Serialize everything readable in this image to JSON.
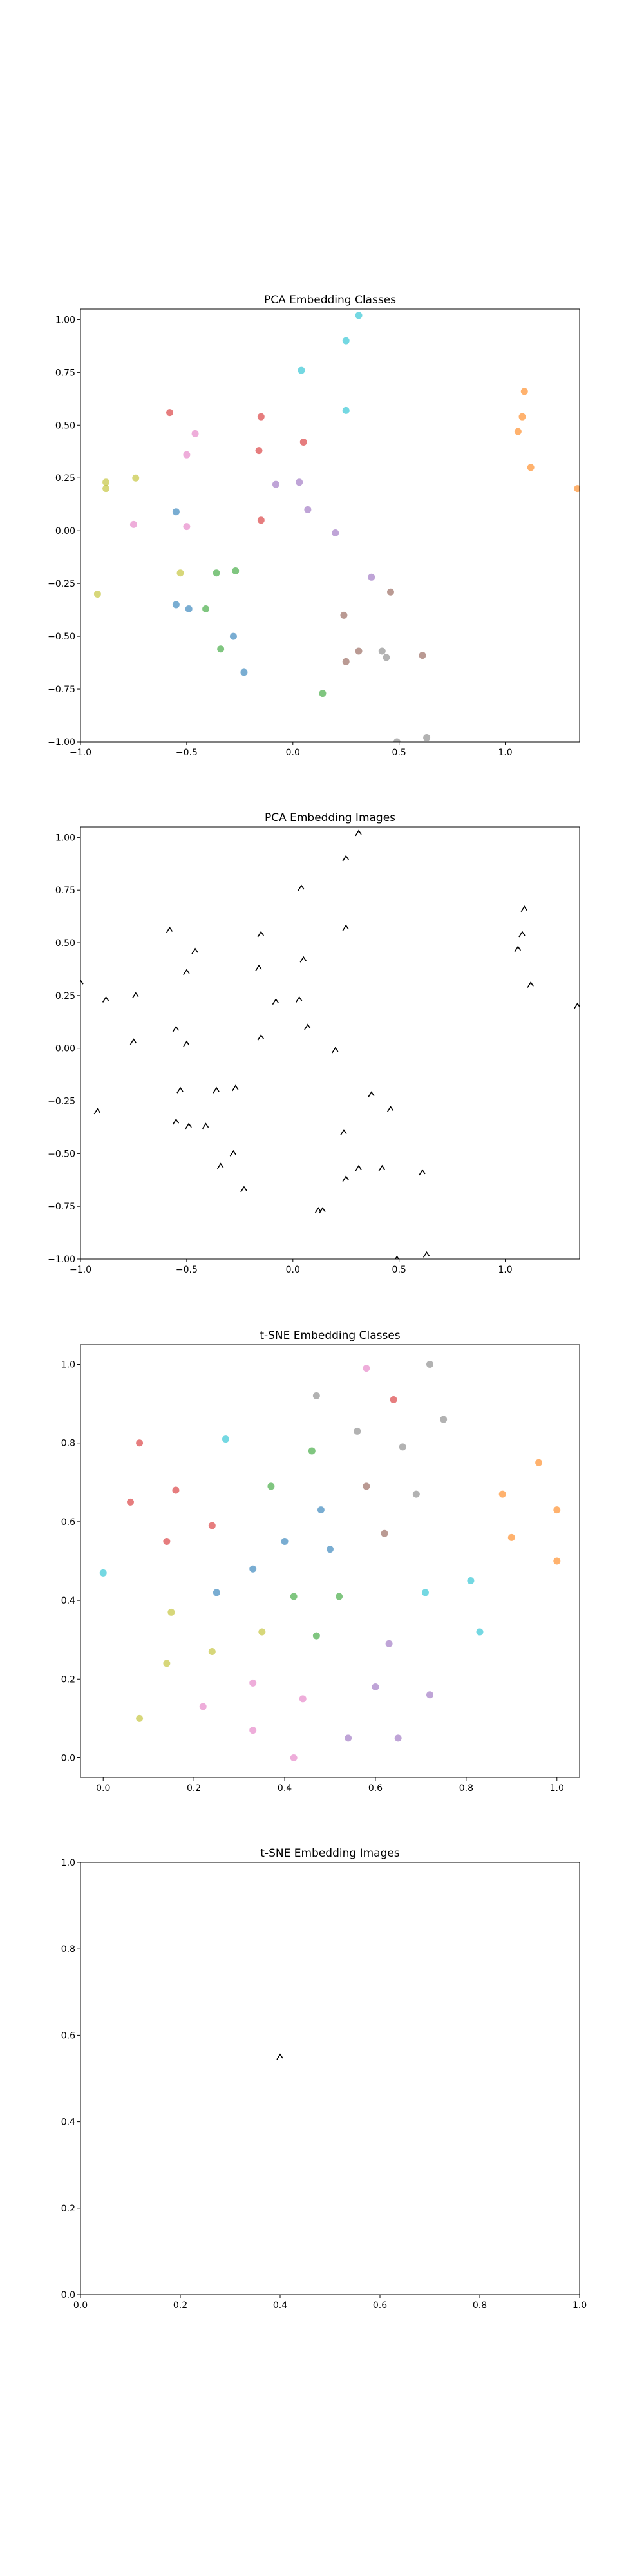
{
  "chart_data": [
    {
      "type": "scatter",
      "title": "PCA Embedding Classes",
      "xlim": [
        -1.0,
        1.35
      ],
      "ylim": [
        -1.0,
        1.05
      ],
      "xticks": [
        -1.0,
        -0.5,
        0.0,
        0.5,
        1.0
      ],
      "xtick_labels": [
        "−1.0",
        "−0.5",
        "0.0",
        "0.5",
        "1.0"
      ],
      "yticks": [
        -1.0,
        -0.75,
        -0.5,
        -0.25,
        0.0,
        0.25,
        0.5,
        0.75,
        1.0
      ],
      "ytick_labels": [
        "−1.00",
        "−0.75",
        "−0.50",
        "−0.25",
        "0.00",
        "0.25",
        "0.50",
        "0.75",
        "1.00"
      ],
      "marker": "dot",
      "points": [
        {
          "x": 0.31,
          "y": 1.02,
          "color": "#17becf"
        },
        {
          "x": 0.25,
          "y": 0.9,
          "color": "#17becf"
        },
        {
          "x": 0.04,
          "y": 0.76,
          "color": "#17becf"
        },
        {
          "x": 0.25,
          "y": 0.57,
          "color": "#17becf"
        },
        {
          "x": 1.09,
          "y": 0.66,
          "color": "#ff7f0e"
        },
        {
          "x": 1.08,
          "y": 0.54,
          "color": "#ff7f0e"
        },
        {
          "x": 1.06,
          "y": 0.47,
          "color": "#ff7f0e"
        },
        {
          "x": 1.12,
          "y": 0.3,
          "color": "#ff7f0e"
        },
        {
          "x": 1.34,
          "y": 0.2,
          "color": "#ff7f0e"
        },
        {
          "x": -0.58,
          "y": 0.56,
          "color": "#d62728"
        },
        {
          "x": -0.15,
          "y": 0.54,
          "color": "#d62728"
        },
        {
          "x": 0.05,
          "y": 0.42,
          "color": "#d62728"
        },
        {
          "x": -0.16,
          "y": 0.38,
          "color": "#d62728"
        },
        {
          "x": -0.15,
          "y": 0.05,
          "color": "#d62728"
        },
        {
          "x": -0.46,
          "y": 0.46,
          "color": "#e377c2"
        },
        {
          "x": -0.5,
          "y": 0.36,
          "color": "#e377c2"
        },
        {
          "x": -0.75,
          "y": 0.03,
          "color": "#e377c2"
        },
        {
          "x": -0.5,
          "y": 0.02,
          "color": "#e377c2"
        },
        {
          "x": -0.88,
          "y": 0.23,
          "color": "#bcbd22"
        },
        {
          "x": -0.88,
          "y": 0.2,
          "color": "#bcbd22"
        },
        {
          "x": -0.74,
          "y": 0.25,
          "color": "#bcbd22"
        },
        {
          "x": -0.53,
          "y": -0.2,
          "color": "#bcbd22"
        },
        {
          "x": -0.92,
          "y": -0.3,
          "color": "#bcbd22"
        },
        {
          "x": -0.08,
          "y": 0.22,
          "color": "#9467bd"
        },
        {
          "x": 0.03,
          "y": 0.23,
          "color": "#9467bd"
        },
        {
          "x": 0.07,
          "y": 0.1,
          "color": "#9467bd"
        },
        {
          "x": 0.2,
          "y": -0.01,
          "color": "#9467bd"
        },
        {
          "x": 0.37,
          "y": -0.22,
          "color": "#9467bd"
        },
        {
          "x": -0.55,
          "y": 0.09,
          "color": "#1f77b4"
        },
        {
          "x": -0.55,
          "y": -0.35,
          "color": "#1f77b4"
        },
        {
          "x": -0.49,
          "y": -0.37,
          "color": "#1f77b4"
        },
        {
          "x": -0.28,
          "y": -0.5,
          "color": "#1f77b4"
        },
        {
          "x": -0.23,
          "y": -0.67,
          "color": "#1f77b4"
        },
        {
          "x": -0.36,
          "y": -0.2,
          "color": "#2ca02c"
        },
        {
          "x": -0.27,
          "y": -0.19,
          "color": "#2ca02c"
        },
        {
          "x": -0.41,
          "y": -0.37,
          "color": "#2ca02c"
        },
        {
          "x": -0.34,
          "y": -0.56,
          "color": "#2ca02c"
        },
        {
          "x": 0.14,
          "y": -0.77,
          "color": "#2ca02c"
        },
        {
          "x": 0.46,
          "y": -0.29,
          "color": "#8c564b"
        },
        {
          "x": 0.24,
          "y": -0.4,
          "color": "#8c564b"
        },
        {
          "x": 0.31,
          "y": -0.57,
          "color": "#8c564b"
        },
        {
          "x": 0.25,
          "y": -0.62,
          "color": "#8c564b"
        },
        {
          "x": 0.61,
          "y": -0.59,
          "color": "#8c564b"
        },
        {
          "x": 0.42,
          "y": -0.57,
          "color": "#7f7f7f"
        },
        {
          "x": 0.44,
          "y": -0.6,
          "color": "#7f7f7f"
        },
        {
          "x": 0.49,
          "y": -1.0,
          "color": "#7f7f7f"
        },
        {
          "x": 0.63,
          "y": -0.98,
          "color": "#7f7f7f"
        }
      ]
    },
    {
      "type": "scatter",
      "title": "PCA Embedding Images",
      "xlim": [
        -1.0,
        1.35
      ],
      "ylim": [
        -1.0,
        1.05
      ],
      "xticks": [
        -1.0,
        -0.5,
        0.0,
        0.5,
        1.0
      ],
      "xtick_labels": [
        "−1.0",
        "−0.5",
        "0.0",
        "0.5",
        "1.0"
      ],
      "yticks": [
        -1.0,
        -0.75,
        -0.5,
        -0.25,
        0.0,
        0.25,
        0.5,
        0.75,
        1.0
      ],
      "ytick_labels": [
        "−1.00",
        "−0.75",
        "−0.50",
        "−0.25",
        "0.00",
        "0.25",
        "0.50",
        "0.75",
        "1.00"
      ],
      "marker": "glyph",
      "points": [
        {
          "x": 0.31,
          "y": 1.02,
          "color": "#000000"
        },
        {
          "x": 0.25,
          "y": 0.9,
          "color": "#000000"
        },
        {
          "x": 0.04,
          "y": 0.76,
          "color": "#000000"
        },
        {
          "x": 0.25,
          "y": 0.57,
          "color": "#000000"
        },
        {
          "x": 1.09,
          "y": 0.66,
          "color": "#000000"
        },
        {
          "x": 1.08,
          "y": 0.54,
          "color": "#000000"
        },
        {
          "x": 1.06,
          "y": 0.47,
          "color": "#000000"
        },
        {
          "x": 1.12,
          "y": 0.3,
          "color": "#000000"
        },
        {
          "x": 1.34,
          "y": 0.2,
          "color": "#000000"
        },
        {
          "x": -0.58,
          "y": 0.56,
          "color": "#000000"
        },
        {
          "x": -0.15,
          "y": 0.54,
          "color": "#000000"
        },
        {
          "x": 0.05,
          "y": 0.42,
          "color": "#000000"
        },
        {
          "x": -0.16,
          "y": 0.38,
          "color": "#000000"
        },
        {
          "x": -0.15,
          "y": 0.05,
          "color": "#000000"
        },
        {
          "x": -0.46,
          "y": 0.46,
          "color": "#000000"
        },
        {
          "x": -0.5,
          "y": 0.36,
          "color": "#000000"
        },
        {
          "x": -0.75,
          "y": 0.03,
          "color": "#000000"
        },
        {
          "x": -0.5,
          "y": 0.02,
          "color": "#000000"
        },
        {
          "x": -0.88,
          "y": 0.23,
          "color": "#000000"
        },
        {
          "x": -0.74,
          "y": 0.25,
          "color": "#000000"
        },
        {
          "x": -0.53,
          "y": -0.2,
          "color": "#000000"
        },
        {
          "x": -0.92,
          "y": -0.3,
          "color": "#000000"
        },
        {
          "x": -0.08,
          "y": 0.22,
          "color": "#000000"
        },
        {
          "x": 0.03,
          "y": 0.23,
          "color": "#000000"
        },
        {
          "x": 0.07,
          "y": 0.1,
          "color": "#000000"
        },
        {
          "x": 0.2,
          "y": -0.01,
          "color": "#000000"
        },
        {
          "x": 0.37,
          "y": -0.22,
          "color": "#000000"
        },
        {
          "x": -0.55,
          "y": 0.09,
          "color": "#000000"
        },
        {
          "x": -0.55,
          "y": -0.35,
          "color": "#000000"
        },
        {
          "x": -0.49,
          "y": -0.37,
          "color": "#000000"
        },
        {
          "x": -0.28,
          "y": -0.5,
          "color": "#000000"
        },
        {
          "x": -0.23,
          "y": -0.67,
          "color": "#000000"
        },
        {
          "x": -0.36,
          "y": -0.2,
          "color": "#000000"
        },
        {
          "x": -0.27,
          "y": -0.19,
          "color": "#000000"
        },
        {
          "x": -0.41,
          "y": -0.37,
          "color": "#000000"
        },
        {
          "x": -0.34,
          "y": -0.56,
          "color": "#000000"
        },
        {
          "x": 0.14,
          "y": -0.77,
          "color": "#000000"
        },
        {
          "x": 0.46,
          "y": -0.29,
          "color": "#000000"
        },
        {
          "x": 0.24,
          "y": -0.4,
          "color": "#000000"
        },
        {
          "x": 0.31,
          "y": -0.57,
          "color": "#000000"
        },
        {
          "x": 0.25,
          "y": -0.62,
          "color": "#000000"
        },
        {
          "x": 0.61,
          "y": -0.59,
          "color": "#000000"
        },
        {
          "x": 0.42,
          "y": -0.57,
          "color": "#000000"
        },
        {
          "x": 0.49,
          "y": -1.0,
          "color": "#000000"
        },
        {
          "x": 0.63,
          "y": -0.98,
          "color": "#000000"
        },
        {
          "x": 0.12,
          "y": -0.77,
          "color": "#000000"
        },
        {
          "x": -1.0,
          "y": 0.31,
          "color": "#000000"
        }
      ]
    },
    {
      "type": "scatter",
      "title": "t-SNE Embedding Classes",
      "xlim": [
        -0.05,
        1.05
      ],
      "ylim": [
        -0.05,
        1.05
      ],
      "xticks": [
        0.0,
        0.2,
        0.4,
        0.6,
        0.8,
        1.0
      ],
      "xtick_labels": [
        "0.0",
        "0.2",
        "0.4",
        "0.6",
        "0.8",
        "1.0"
      ],
      "yticks": [
        0.0,
        0.2,
        0.4,
        0.6,
        0.8,
        1.0
      ],
      "ytick_labels": [
        "0.0",
        "0.2",
        "0.4",
        "0.6",
        "0.8",
        "1.0"
      ],
      "marker": "dot",
      "points": [
        {
          "x": 0.58,
          "y": 0.99,
          "color": "#e377c2"
        },
        {
          "x": 0.72,
          "y": 1.0,
          "color": "#7f7f7f"
        },
        {
          "x": 0.47,
          "y": 0.92,
          "color": "#7f7f7f"
        },
        {
          "x": 0.64,
          "y": 0.91,
          "color": "#d62728"
        },
        {
          "x": 0.75,
          "y": 0.86,
          "color": "#7f7f7f"
        },
        {
          "x": 0.56,
          "y": 0.83,
          "color": "#7f7f7f"
        },
        {
          "x": 0.27,
          "y": 0.81,
          "color": "#17becf"
        },
        {
          "x": 0.08,
          "y": 0.8,
          "color": "#d62728"
        },
        {
          "x": 0.46,
          "y": 0.78,
          "color": "#2ca02c"
        },
        {
          "x": 0.66,
          "y": 0.79,
          "color": "#7f7f7f"
        },
        {
          "x": 0.96,
          "y": 0.75,
          "color": "#ff7f0e"
        },
        {
          "x": 0.37,
          "y": 0.69,
          "color": "#2ca02c"
        },
        {
          "x": 0.58,
          "y": 0.69,
          "color": "#8c564b"
        },
        {
          "x": 0.16,
          "y": 0.68,
          "color": "#d62728"
        },
        {
          "x": 0.88,
          "y": 0.67,
          "color": "#ff7f0e"
        },
        {
          "x": 0.69,
          "y": 0.67,
          "color": "#7f7f7f"
        },
        {
          "x": 0.06,
          "y": 0.65,
          "color": "#d62728"
        },
        {
          "x": 0.48,
          "y": 0.63,
          "color": "#1f77b4"
        },
        {
          "x": 1.0,
          "y": 0.63,
          "color": "#ff7f0e"
        },
        {
          "x": 0.24,
          "y": 0.59,
          "color": "#d62728"
        },
        {
          "x": 0.62,
          "y": 0.57,
          "color": "#8c564b"
        },
        {
          "x": 0.9,
          "y": 0.56,
          "color": "#ff7f0e"
        },
        {
          "x": 0.14,
          "y": 0.55,
          "color": "#d62728"
        },
        {
          "x": 0.4,
          "y": 0.55,
          "color": "#1f77b4"
        },
        {
          "x": 0.5,
          "y": 0.53,
          "color": "#1f77b4"
        },
        {
          "x": 1.0,
          "y": 0.5,
          "color": "#ff7f0e"
        },
        {
          "x": 0.33,
          "y": 0.48,
          "color": "#1f77b4"
        },
        {
          "x": 0.0,
          "y": 0.47,
          "color": "#17becf"
        },
        {
          "x": 0.81,
          "y": 0.45,
          "color": "#17becf"
        },
        {
          "x": 0.25,
          "y": 0.42,
          "color": "#1f77b4"
        },
        {
          "x": 0.42,
          "y": 0.41,
          "color": "#2ca02c"
        },
        {
          "x": 0.52,
          "y": 0.41,
          "color": "#2ca02c"
        },
        {
          "x": 0.71,
          "y": 0.42,
          "color": "#17becf"
        },
        {
          "x": 0.15,
          "y": 0.37,
          "color": "#bcbd22"
        },
        {
          "x": 0.35,
          "y": 0.32,
          "color": "#bcbd22"
        },
        {
          "x": 0.47,
          "y": 0.31,
          "color": "#2ca02c"
        },
        {
          "x": 0.83,
          "y": 0.32,
          "color": "#17becf"
        },
        {
          "x": 0.63,
          "y": 0.29,
          "color": "#9467bd"
        },
        {
          "x": 0.24,
          "y": 0.27,
          "color": "#bcbd22"
        },
        {
          "x": 0.14,
          "y": 0.24,
          "color": "#bcbd22"
        },
        {
          "x": 0.33,
          "y": 0.19,
          "color": "#e377c2"
        },
        {
          "x": 0.6,
          "y": 0.18,
          "color": "#9467bd"
        },
        {
          "x": 0.44,
          "y": 0.15,
          "color": "#e377c2"
        },
        {
          "x": 0.72,
          "y": 0.16,
          "color": "#9467bd"
        },
        {
          "x": 0.22,
          "y": 0.13,
          "color": "#e377c2"
        },
        {
          "x": 0.08,
          "y": 0.1,
          "color": "#bcbd22"
        },
        {
          "x": 0.33,
          "y": 0.07,
          "color": "#e377c2"
        },
        {
          "x": 0.54,
          "y": 0.05,
          "color": "#9467bd"
        },
        {
          "x": 0.65,
          "y": 0.05,
          "color": "#9467bd"
        },
        {
          "x": 0.42,
          "y": 0.0,
          "color": "#e377c2"
        }
      ]
    },
    {
      "type": "scatter",
      "title": "t-SNE Embedding Images",
      "xlim": [
        0.0,
        1.0
      ],
      "ylim": [
        0.0,
        1.0
      ],
      "xticks": [
        0.0,
        0.2,
        0.4,
        0.6,
        0.8,
        1.0
      ],
      "xtick_labels": [
        "0.0",
        "0.2",
        "0.4",
        "0.6",
        "0.8",
        "1.0"
      ],
      "yticks": [
        0.0,
        0.2,
        0.4,
        0.6,
        0.8,
        1.0
      ],
      "ytick_labels": [
        "0.0",
        "0.2",
        "0.4",
        "0.6",
        "0.8",
        "1.0"
      ],
      "marker": "glyph",
      "points": [
        {
          "x": 0.4,
          "y": 0.55,
          "color": "#000000"
        }
      ]
    }
  ]
}
